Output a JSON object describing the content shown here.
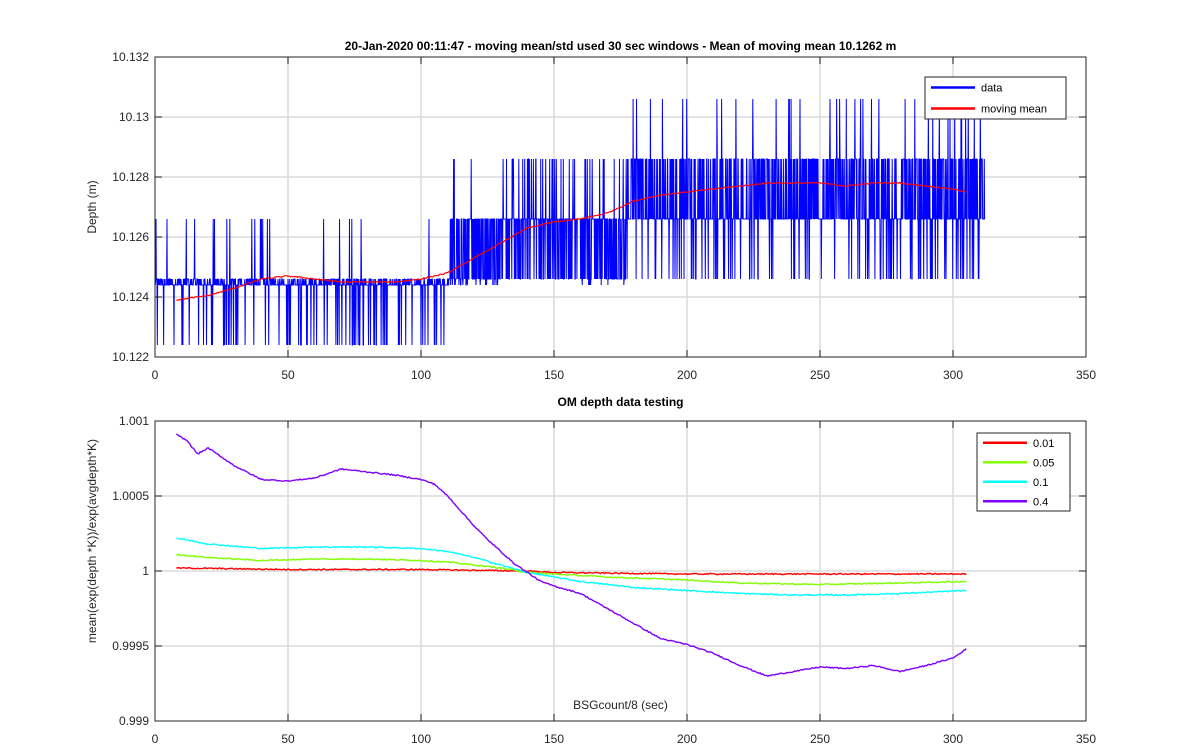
{
  "chart_data": [
    {
      "type": "line",
      "title": "20-Jan-2020 00:11:47 - moving mean/std used 30 sec windows - Mean of moving mean 10.1262 m",
      "xlabel": "",
      "ylabel": "Depth (m)",
      "xlim": [
        0,
        350
      ],
      "ylim": [
        10.122,
        10.132
      ],
      "xticks": [
        "0",
        "50",
        "100",
        "150",
        "200",
        "250",
        "300",
        "350"
      ],
      "yticks": [
        "10.122",
        "10.124",
        "10.126",
        "10.128",
        "10.13",
        "10.132"
      ],
      "grid": true,
      "legend_position": "top-right",
      "series": [
        {
          "name": "data",
          "color": "#0000ff",
          "kind": "noisy-quantized",
          "x_range": [
            0,
            312
          ],
          "baseline": [
            [
              0,
              10.1245
            ],
            [
              110,
              10.1245
            ],
            [
              111,
              10.1256
            ],
            [
              130,
              10.1262
            ],
            [
              131,
              10.1266
            ],
            [
              177,
              10.1266
            ],
            [
              178,
              10.1276
            ],
            [
              312,
              10.1276
            ]
          ],
          "levels": [
            10.1224,
            10.1244,
            10.1246,
            10.1266,
            10.1286,
            10.1306
          ]
        },
        {
          "name": "moving mean",
          "color": "#ff0000",
          "x": [
            8,
            20,
            30,
            40,
            50,
            60,
            70,
            80,
            90,
            100,
            110,
            120,
            130,
            140,
            150,
            160,
            170,
            180,
            190,
            200,
            210,
            220,
            230,
            240,
            250,
            260,
            270,
            280,
            290,
            300,
            305
          ],
          "y": [
            10.1239,
            10.12405,
            10.1243,
            10.1246,
            10.1247,
            10.1246,
            10.1245,
            10.1245,
            10.1245,
            10.1246,
            10.1248,
            10.1253,
            10.1258,
            10.1263,
            10.1265,
            10.1266,
            10.1268,
            10.1272,
            10.1274,
            10.1275,
            10.1276,
            10.1277,
            10.1278,
            10.1278,
            10.1278,
            10.1277,
            10.1278,
            10.1278,
            10.1277,
            10.1276,
            10.1275
          ]
        }
      ]
    },
    {
      "type": "line",
      "title": "OM depth data testing",
      "xlabel": "BSGcount/8 (sec)",
      "ylabel": "mean(exp(depth *K))/exp(avgdepth*K)",
      "xlim": [
        0,
        350
      ],
      "ylim": [
        0.999,
        1.001
      ],
      "xticks": [
        "0",
        "50",
        "100",
        "150",
        "200",
        "250",
        "300",
        "350"
      ],
      "yticks": [
        "0.999",
        "0.9995",
        "1",
        "1.0005",
        "1.001"
      ],
      "grid": true,
      "legend_position": "top-right",
      "series": [
        {
          "name": "0.01",
          "color": "#ff0000",
          "x": [
            8,
            50,
            100,
            140,
            150,
            200,
            250,
            305
          ],
          "y": [
            1.00002,
            1.00001,
            1.00001,
            1.0,
            0.99999,
            0.99998,
            0.99998,
            0.99998
          ]
        },
        {
          "name": "0.05",
          "color": "#7fff00",
          "x": [
            8,
            20,
            40,
            60,
            80,
            100,
            110,
            120,
            130,
            140,
            150,
            170,
            200,
            220,
            250,
            280,
            305
          ],
          "y": [
            1.00011,
            1.00009,
            1.00007,
            1.00008,
            1.00008,
            1.00007,
            1.00006,
            1.00004,
            1.00002,
            0.99999,
            0.99998,
            0.99996,
            0.99994,
            0.99992,
            0.99991,
            0.99992,
            0.99993
          ]
        },
        {
          "name": "0.1",
          "color": "#00ffff",
          "x": [
            8,
            20,
            40,
            60,
            80,
            100,
            110,
            120,
            130,
            140,
            150,
            160,
            180,
            200,
            220,
            240,
            260,
            280,
            305
          ],
          "y": [
            1.00022,
            1.00018,
            1.00015,
            1.00016,
            1.00016,
            1.00015,
            1.00013,
            1.00009,
            1.00004,
            0.99999,
            0.99996,
            0.99993,
            0.99989,
            0.99987,
            0.99985,
            0.99984,
            0.99984,
            0.99985,
            0.99987
          ]
        },
        {
          "name": "0.4",
          "color": "#7f00ff",
          "x": [
            8,
            12,
            16,
            20,
            30,
            40,
            50,
            60,
            70,
            80,
            90,
            100,
            105,
            110,
            115,
            120,
            125,
            130,
            135,
            140,
            145,
            150,
            160,
            170,
            180,
            190,
            200,
            210,
            220,
            230,
            240,
            250,
            260,
            270,
            280,
            290,
            300,
            305
          ],
          "y": [
            1.00091,
            1.00087,
            1.00078,
            1.00082,
            1.0007,
            1.00061,
            1.0006,
            1.00062,
            1.00068,
            1.00066,
            1.00064,
            1.00061,
            1.00058,
            1.0005,
            1.0004,
            1.0003,
            1.00021,
            1.00013,
            1.00005,
            0.99999,
            0.99993,
            0.9999,
            0.99985,
            0.99975,
            0.99965,
            0.99955,
            0.99951,
            0.99945,
            0.99937,
            0.9993,
            0.99933,
            0.99936,
            0.99935,
            0.99937,
            0.99933,
            0.99937,
            0.99942,
            0.99948
          ]
        }
      ]
    }
  ]
}
